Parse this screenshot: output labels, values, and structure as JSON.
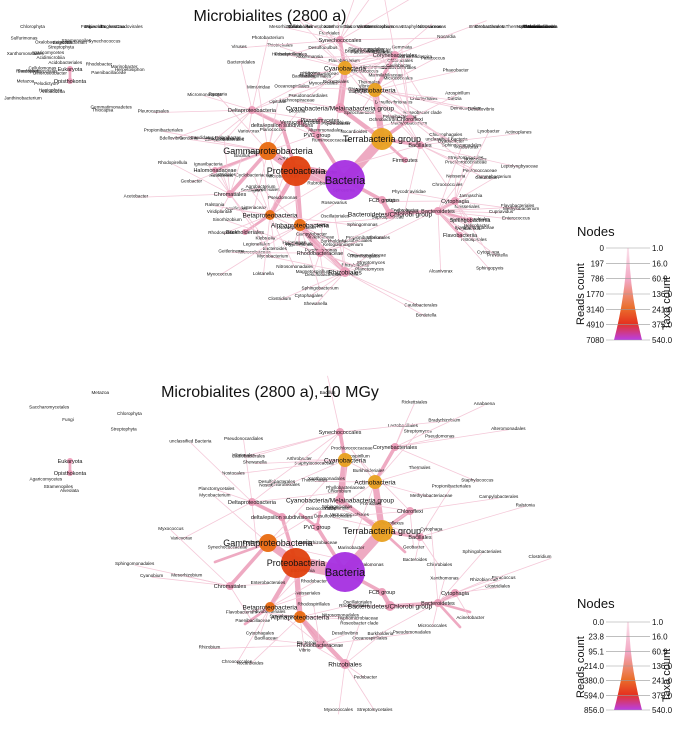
{
  "colors": {
    "bacteria": "#a52fe0",
    "proteobacteria": "#e0400e",
    "gamma": "#e86a10",
    "terra": "#e8a020",
    "edge_light": "#f4c8d8",
    "edge_mid": "#ec9cb8",
    "edge_dark": "#de6fa0"
  },
  "panels": [
    {
      "title": "Microbialites (2800 a)",
      "legend": {
        "title": "Nodes",
        "left_label": "Reads count",
        "right_label": "Taxa count",
        "reads_ticks": [
          "0",
          "197",
          "786",
          "1770",
          "3140",
          "4910",
          "7080"
        ],
        "taxa_ticks": [
          "1.0",
          "16.0",
          "60.9",
          "136.0",
          "241.0",
          "375.0",
          "540.0"
        ]
      },
      "major_labels": [
        "Bacteria",
        "Proteobacteria",
        "Gammaproteobacteria",
        "Terrabacteria group",
        "Actinobacteria",
        "Cyanobacteria",
        "Alphaproteobacteria",
        "Betaproteobacteria",
        "Bacteroidetes/Chlorobi group",
        "FCB group",
        "PVC group",
        "delta/epsilon subdivisions",
        "Deltaproteobacteria",
        "Cyanobacteria/Melainabacteria group",
        "Eukaryota",
        "Opisthokonta",
        "Bacteroidetes",
        "Cytophagia",
        "Rhizobiales",
        "Bacillales",
        "Firmicutes",
        "Chloroflexi",
        "Rhodobacteraceae",
        "Synechococcales",
        "Verrucomicrobia",
        "Planctomycetes",
        "Sphingobacteriia",
        "Flavobacteriia",
        "Chromatiales",
        "Corynebacteriales",
        "Halomonadaceae",
        "Burkholderiales",
        "Euryarchaeota",
        "Stenosarchaea group",
        "Halobacteriales"
      ],
      "minor_labels": [
        "Rhodobacter",
        "Paracoccus",
        "Roseobacter clade",
        "Hyphomonas",
        "Rhodospirillum",
        "Sphingomonadales",
        "Caulobacterales",
        "Methylobacterium",
        "Bradyrhizobiaceae",
        "Phyllobacteriaceae",
        "Rhizobiaceae",
        "Xanthomonadales",
        "Pseudomonadales",
        "Enterobacterales",
        "Vibrionales",
        "Alteromonadales",
        "Oceanospirillales",
        "Thiotrichales",
        "Legionellales",
        "Nitrosomonadales",
        "Neisseriales",
        "Comamonadaceae",
        "Oxalobacteraceae",
        "Myxococcales",
        "Desulfovibrionales",
        "Desulfobacterales",
        "Campylobacterales",
        "Bdellovibrionales",
        "Micrococcales",
        "Streptomycetales",
        "Propionibacteriales",
        "Frankiales",
        "Pseudonocardiales",
        "Acidimicrobiia",
        "Rubrobacteria",
        "Nostocales",
        "Oscillatoriales",
        "Chroococcales",
        "Pleurocapsales",
        "Prochlorococcaceae",
        "Lactobacillales",
        "Clostridiales",
        "Staphylococcaceae",
        "Bacillaceae",
        "Paenibacillaceae",
        "Listeriaceae",
        "Deinococcales",
        "Thermales",
        "Chloroflexales",
        "Anaerolineae",
        "Flavobacteriales",
        "Cytophagales",
        "Chitinophagales",
        "Bacteroidales",
        "Chlorobiales",
        "Gemmatimonadetes",
        "Ignavibacteria",
        "Planctomycetales",
        "Chlamydiales",
        "Verrucomicrobiales",
        "Opitutae",
        "Spirochaetales",
        "Fusobacteriales",
        "Thermotogales",
        "Aquificales",
        "Nitrospirales",
        "Acidobacteriales",
        "Saccharomycetales",
        "Agaricomycetes",
        "Metazoa",
        "Fungi",
        "Viridiplantae",
        "Streptophyta",
        "Chlorophyta",
        "Stramenopiles",
        "Alveolata",
        "Rhodophyta",
        "Haptophyta",
        "Amoebozoa",
        "Euglenozoa",
        "Methanomicrobia",
        "Thermoplasmata",
        "Halobacteria",
        "Natrialbaceae",
        "Haloferacaceae",
        "Thaumarchaeota",
        "Crenarchaeota",
        "Viruses",
        "Caudovirales",
        "Phycodnaviridae",
        "Mimiviridae",
        "unclassified Bacteria",
        "Marinilabiliaceae",
        "Saprospiraceae",
        "Cyclobacteriaceae",
        "Flammeovirgaceae",
        "Microcoleaceae",
        "Leptolyngbyaceae",
        "Cyanobium",
        "Synechococcus",
        "Geitlerinema",
        "Mycobacterium",
        "Nocardia",
        "Rhodococcus",
        "Corynebacterium",
        "Gordonia",
        "Dietzia",
        "Kocuria",
        "Arthrobacter",
        "Microbacterium",
        "Cellulomonas",
        "Streptomyces",
        "Actinoplanes",
        "Micromonospora",
        "Nocardioides",
        "Propionibacterium",
        "Bacillus",
        "Geobacillus",
        "Halobacillus",
        "Virgibacillus",
        "Planococcus",
        "Exiguobacterium",
        "Staphylococcus",
        "Lactobacillus",
        "Streptococcus",
        "Enterococcus",
        "Clostridium",
        "Peptococcaceae",
        "Ruminococcaceae",
        "Lachnospiraceae",
        "Chloroflexus",
        "Roseiflexus",
        "Herpetosiphon",
        "Flavobacterium",
        "Cytophaga",
        "Spirosoma",
        "Dyadobacter",
        "Pedobacter",
        "Sphingobacterium",
        "Bacteroides",
        "Prevotella",
        "Porphyromonas",
        "Chlorobium",
        "Pelodictyon",
        "Gemmata",
        "Planctomyces",
        "Rhodopirellula",
        "Verrucomicrobium",
        "Akkermansia",
        "Opitutus",
        "Pseudomonas",
        "Acinetobacter",
        "Psychrobacter",
        "Halomonas",
        "Marinobacter",
        "Alcanivorax",
        "Shewanella",
        "Vibrio",
        "Photobacterium",
        "Escherichia",
        "Salmonella",
        "Klebsiella",
        "Xanthomonas",
        "Stenotrophomonas",
        "Lysobacter",
        "Thiocapsa",
        "Allochromatium",
        "Ectothiorhodospira",
        "Burkholderia",
        "Ralstonia",
        "Cupriavidus",
        "Bordetella",
        "Achromobacter",
        "Variovorax",
        "Acidovorax",
        "Delftia",
        "Janthinobacterium",
        "Herbaspirillum",
        "Nitrosomonas",
        "Neisseria",
        "Geobacter",
        "Desulfovibrio",
        "Desulfobulbus",
        "Myxococcus",
        "Sorangium",
        "Helicobacter",
        "Campylobacter",
        "Sulfurimonas",
        "Bdellovibrio",
        "Rhizobium",
        "Sinorhizobium",
        "Agrobacterium",
        "Mesorhizobium",
        "Bradyrhizobium",
        "Methylobacterium",
        "Brucella",
        "Ochrobactrum",
        "Caulobacter",
        "Brevundimonas",
        "Sphingomonas",
        "Sphingopyxis",
        "Novosphingobium",
        "Erythrobacter",
        "Rhodospirillales",
        "Azospirillum",
        "Magnetospirillum",
        "Acetobacter",
        "Gluconobacter",
        "Rickettsiales",
        "Dinoroseobacter",
        "Ruegeria",
        "Phaeobacter",
        "Sulfitobacter",
        "Roseovarius",
        "Loktanella",
        "Jannaschia",
        "Ketogulonicigenium",
        "Pelagibacterales",
        "Candidatus Pelagibacter"
      ]
    },
    {
      "title": "Microbialites (2800 a), 10 MGy",
      "legend": {
        "title": "Nodes",
        "left_label": "Reads count",
        "right_label": "Taxa count",
        "reads_ticks": [
          "0.0",
          "23.8",
          "95.1",
          "214.0",
          "380.0",
          "594.0",
          "856.0"
        ],
        "taxa_ticks": [
          "1.0",
          "16.0",
          "60.9",
          "136.0",
          "241.0",
          "375.0",
          "540.0"
        ]
      },
      "major_labels": [
        "Bacteria",
        "Proteobacteria",
        "Gammaproteobacteria",
        "Terrabacteria group",
        "Actinobacteria",
        "Cyanobacteria",
        "Alphaproteobacteria",
        "Betaproteobacteria",
        "Bacteroidetes/Chlorobi group",
        "FCB group",
        "PVC group",
        "delta/epsilon subdivisions",
        "Deltaproteobacteria",
        "Cyanobacteria/Melainabacteria group",
        "Eukaryota",
        "Opisthokonta",
        "Bacteroidetes",
        "Cytophagia",
        "Rhizobiales",
        "Bacillales",
        "Chloroflexi",
        "Rhodobacteraceae",
        "Synechococcales",
        "Chromatiales",
        "Corynebacteriales",
        "Euryarchaeota",
        "Archaea",
        "TACK group",
        "Thaumarchaeota"
      ],
      "minor_labels": [
        "Synechococcaceae",
        "Prochlorococcaceae",
        "Nostocales",
        "Oscillatoriales",
        "Chroococcales",
        "Micrococcales",
        "Streptomycetales",
        "Propionibacteriales",
        "Pseudonocardiales",
        "Frankiales",
        "Bacillaceae",
        "Paenibacillaceae",
        "Staphylococcaceae",
        "Lactobacillales",
        "Clostridiales",
        "Deinococcales",
        "Thermales",
        "Chloroflexales",
        "Flavobacteriales",
        "Cytophagales",
        "Sphingobacteriales",
        "Bacteroidales",
        "Chlorobiales",
        "Planctomycetales",
        "Verrucomicrobiales",
        "Pseudomonadales",
        "Enterobacterales",
        "Vibrionales",
        "Alteromonadales",
        "Oceanospirillales",
        "Xanthomonadales",
        "Thiotrichales",
        "Burkholderiales",
        "Nitrosomonadales",
        "Neisseriales",
        "Rhodocyclales",
        "Myxococcales",
        "Desulfovibrionales",
        "Desulfobacterales",
        "Campylobacterales",
        "Rhodospirillales",
        "Sphingomonadales",
        "Caulobacterales",
        "Rickettsiales",
        "Rhizobiaceae",
        "Bradyrhizobiaceae",
        "Methylobacteriaceae",
        "Phyllobacteriaceae",
        "Hyphomicrobiaceae",
        "Rhodobacter",
        "Paracoccus",
        "Roseobacter clade",
        "Sphingomonas",
        "Erythrobacter",
        "Azospirillum",
        "Rhizobium",
        "Mesorhizobium",
        "Bradyrhizobium",
        "Pseudomonas",
        "Acinetobacter",
        "Halomonas",
        "Marinobacter",
        "Shewanella",
        "Vibrio",
        "Escherichia",
        "Xanthomonas",
        "Burkholderia",
        "Ralstonia",
        "Variovorax",
        "Geobacter",
        "Desulfovibrio",
        "Myxococcus",
        "Bacillus",
        "Staphylococcus",
        "Clostridium",
        "Mycobacterium",
        "Streptomyces",
        "Arthrobacter",
        "Nocardioides",
        "Flavobacterium",
        "Cytophaga",
        "Pedobacter",
        "Bacteroides",
        "Chlorobium",
        "Chloroflexus",
        "Synechococcus",
        "Cyanobium",
        "Nostoc",
        "Anabaena",
        "Metazoa",
        "Fungi",
        "Viridiplantae",
        "Streptophyta",
        "Chlorophyta",
        "Stramenopiles",
        "Alveolata",
        "Saccharomycetales",
        "Agaricomycetes",
        "unclassified Bacteria"
      ]
    }
  ]
}
